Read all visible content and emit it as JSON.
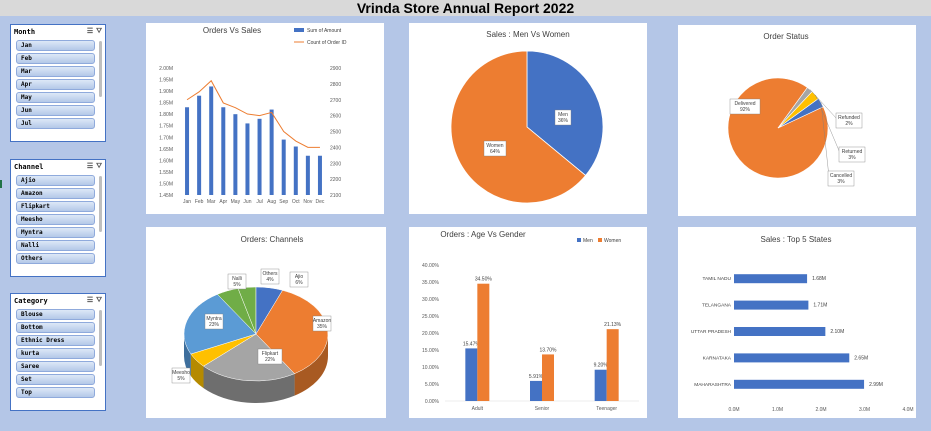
{
  "title": "Vrinda Store Annual Report 2022",
  "slicers": [
    {
      "header": "Month",
      "items": [
        "Jan",
        "Feb",
        "Mar",
        "Apr",
        "May",
        "Jun",
        "Jul"
      ]
    },
    {
      "header": "Channel",
      "items": [
        "Ajio",
        "Amazon",
        "Flipkart",
        "Meesho",
        "Myntra",
        "Nalli",
        "Others"
      ]
    },
    {
      "header": "Category",
      "items": [
        "Blouse",
        "Bottom",
        "Ethnic Dress",
        "kurta",
        "Saree",
        "Set",
        "Top"
      ]
    }
  ],
  "colors": {
    "blue": "#4472c4",
    "orange": "#ed7d31",
    "gray": "#a5a5a5",
    "yellow": "#ffc000",
    "lightblue": "#5b9bd5",
    "green": "#70ad47"
  },
  "chart_data": [
    {
      "type": "bar",
      "title": "Orders Vs Sales",
      "categories": [
        "Jan",
        "Feb",
        "Mar",
        "Apr",
        "May",
        "Jun",
        "Jul",
        "Aug",
        "Sep",
        "Oct",
        "Nov",
        "Dec"
      ],
      "series": [
        {
          "name": "Sum of Amount",
          "values": [
            1.83,
            1.88,
            1.92,
            1.83,
            1.8,
            1.76,
            1.78,
            1.82,
            1.69,
            1.66,
            1.62,
            1.62
          ]
        },
        {
          "name": "Count of Order ID",
          "values": [
            2700,
            2750,
            2820,
            2680,
            2650,
            2610,
            2600,
            2620,
            2500,
            2440,
            2400,
            2400
          ]
        }
      ],
      "ylim": [
        1.45,
        2.0
      ],
      "y_ticks": [
        "2.00M",
        "1.95M",
        "1.90M",
        "1.85M",
        "1.80M",
        "1.75M",
        "1.70M",
        "1.65M",
        "1.60M",
        "1.55M",
        "1.50M",
        "1.45M"
      ],
      "y2lim": [
        2100,
        2900
      ],
      "y2_ticks": [
        "2900",
        "2800",
        "2700",
        "2600",
        "2500",
        "2400",
        "2300",
        "2200",
        "2100"
      ],
      "legend": "top-right"
    },
    {
      "type": "pie",
      "title": "Sales : Men Vs Women",
      "labels": [
        "Men",
        "Women"
      ],
      "values": [
        36,
        64
      ],
      "value_labels": [
        "36%",
        "64%"
      ]
    },
    {
      "type": "pie",
      "title": "Order Status",
      "labels": [
        "Delivered",
        "Refunded",
        "Returned",
        "Cancelled"
      ],
      "values": [
        92,
        2,
        3,
        3
      ],
      "value_labels": [
        "92%",
        "2%",
        "3%",
        "3%"
      ]
    },
    {
      "type": "pie",
      "title": "Orders: Channels",
      "labels": [
        "Amazon",
        "Flipkart",
        "Meesho",
        "Myntra",
        "Nalli",
        "Others",
        "Ajio"
      ],
      "values": [
        35,
        22,
        5,
        23,
        5,
        4,
        6
      ],
      "value_labels": [
        "35%",
        "22%",
        "5%",
        "23%",
        "5%",
        "4%",
        "6%"
      ]
    },
    {
      "type": "bar",
      "title": "Orders : Age Vs Gender",
      "categories": [
        "Adult",
        "Senior",
        "Teenager"
      ],
      "series": [
        {
          "name": "Men",
          "values": [
            15.47,
            5.91,
            9.2
          ],
          "value_labels": [
            "15.47%",
            "5.91%",
            "9.20%"
          ]
        },
        {
          "name": "Women",
          "values": [
            34.5,
            13.7,
            21.13
          ],
          "value_labels": [
            "34.50%",
            "13.70%",
            "21.13%"
          ]
        }
      ],
      "ylim": [
        0,
        40
      ],
      "y_ticks": [
        "40.00%",
        "35.00%",
        "30.00%",
        "25.00%",
        "20.00%",
        "15.00%",
        "10.00%",
        "5.00%",
        "0.00%"
      ],
      "legend": "top-right"
    },
    {
      "type": "bar",
      "title": "Sales : Top 5 States",
      "categories": [
        "TAMIL NADU",
        "TELANGANA",
        "UTTAR PRADESH",
        "KARNATAKA",
        "MAHARASHTRA"
      ],
      "values": [
        1.68,
        1.71,
        2.1,
        2.65,
        2.99
      ],
      "value_labels": [
        "1.68M",
        "1.71M",
        "2.10M",
        "2.65M",
        "2.99M"
      ],
      "xlim": [
        0,
        4
      ],
      "x_ticks": [
        "0.0M",
        "1.0M",
        "2.0M",
        "3.0M",
        "4.0M"
      ]
    }
  ]
}
